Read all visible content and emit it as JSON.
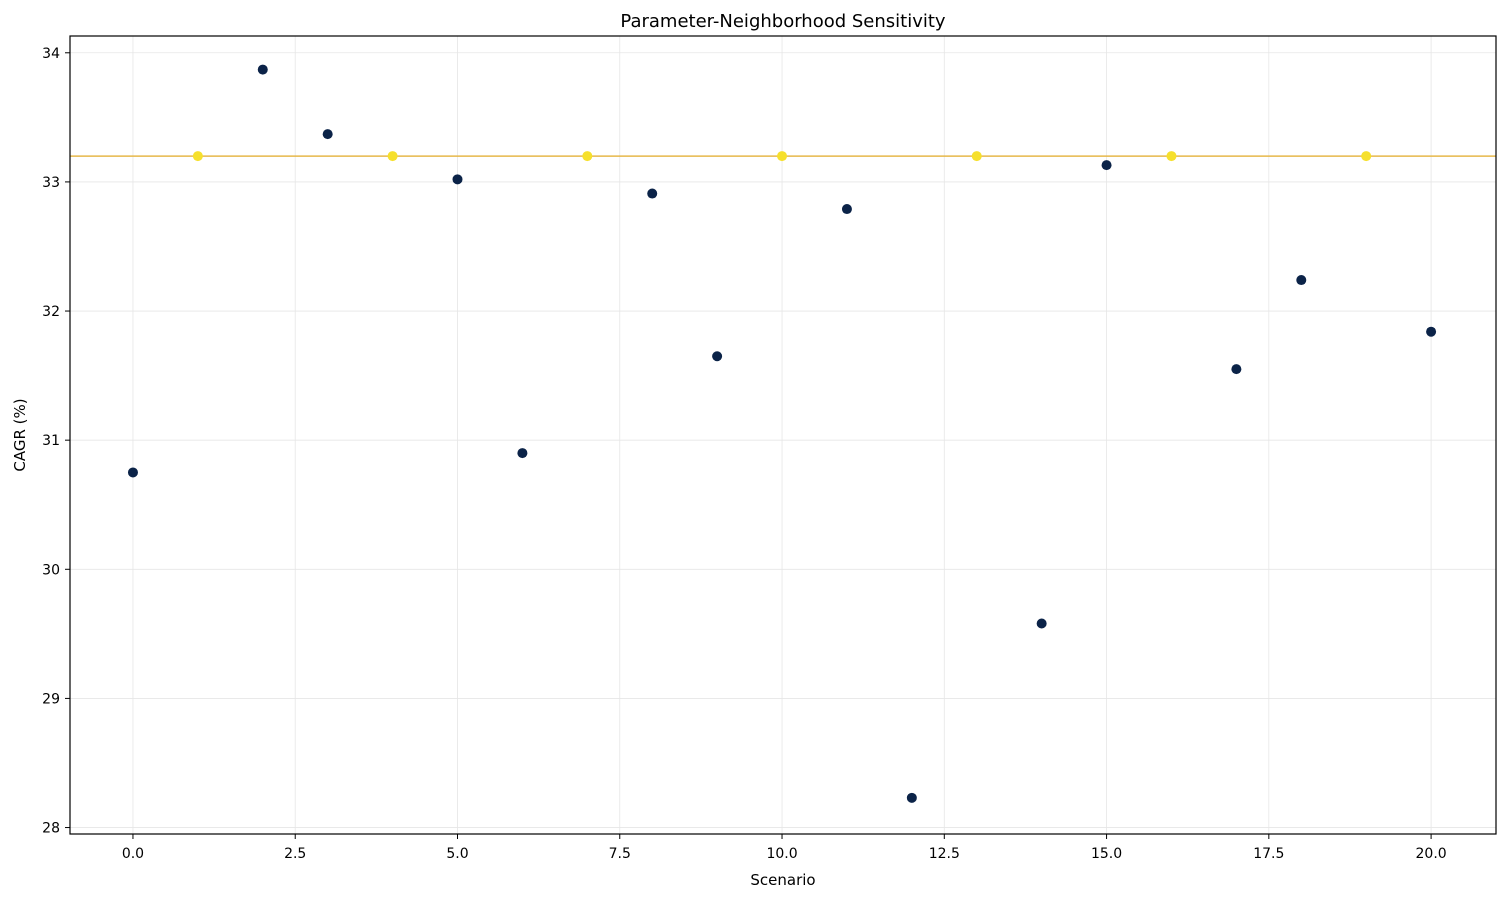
{
  "chart_data": {
    "type": "scatter",
    "title": "Parameter-Neighborhood Sensitivity",
    "xlabel": "Scenario",
    "ylabel": "CAGR (%)",
    "xlim": [
      -0.97,
      21
    ],
    "ylim": [
      27.95,
      34.13
    ],
    "x_ticks": [
      0.0,
      2.5,
      5.0,
      7.5,
      10.0,
      12.5,
      15.0,
      17.5,
      20.0
    ],
    "x_tick_labels": [
      "0.0",
      "2.5",
      "5.0",
      "7.5",
      "10.0",
      "12.5",
      "15.0",
      "17.5",
      "20.0"
    ],
    "y_ticks": [
      28,
      29,
      30,
      31,
      32,
      33,
      34
    ],
    "y_tick_labels": [
      "28",
      "29",
      "30",
      "31",
      "32",
      "33",
      "34"
    ],
    "grid": true,
    "reference_line": {
      "y": 33.2,
      "color": "#e6b84a"
    },
    "series": [
      {
        "color": "#0b2348",
        "x": [
          0,
          2,
          3,
          5,
          6,
          8,
          9,
          11,
          12,
          14,
          15,
          17,
          18,
          20
        ],
        "y": [
          30.75,
          33.87,
          33.37,
          33.02,
          30.9,
          32.91,
          31.65,
          32.79,
          28.23,
          29.58,
          33.13,
          31.55,
          32.24,
          31.84
        ]
      },
      {
        "color": "#f6e02c",
        "x": [
          1,
          4,
          7,
          10,
          13,
          16,
          19
        ],
        "y": [
          33.2,
          33.2,
          33.2,
          33.2,
          33.2,
          33.2,
          33.2
        ]
      }
    ]
  }
}
